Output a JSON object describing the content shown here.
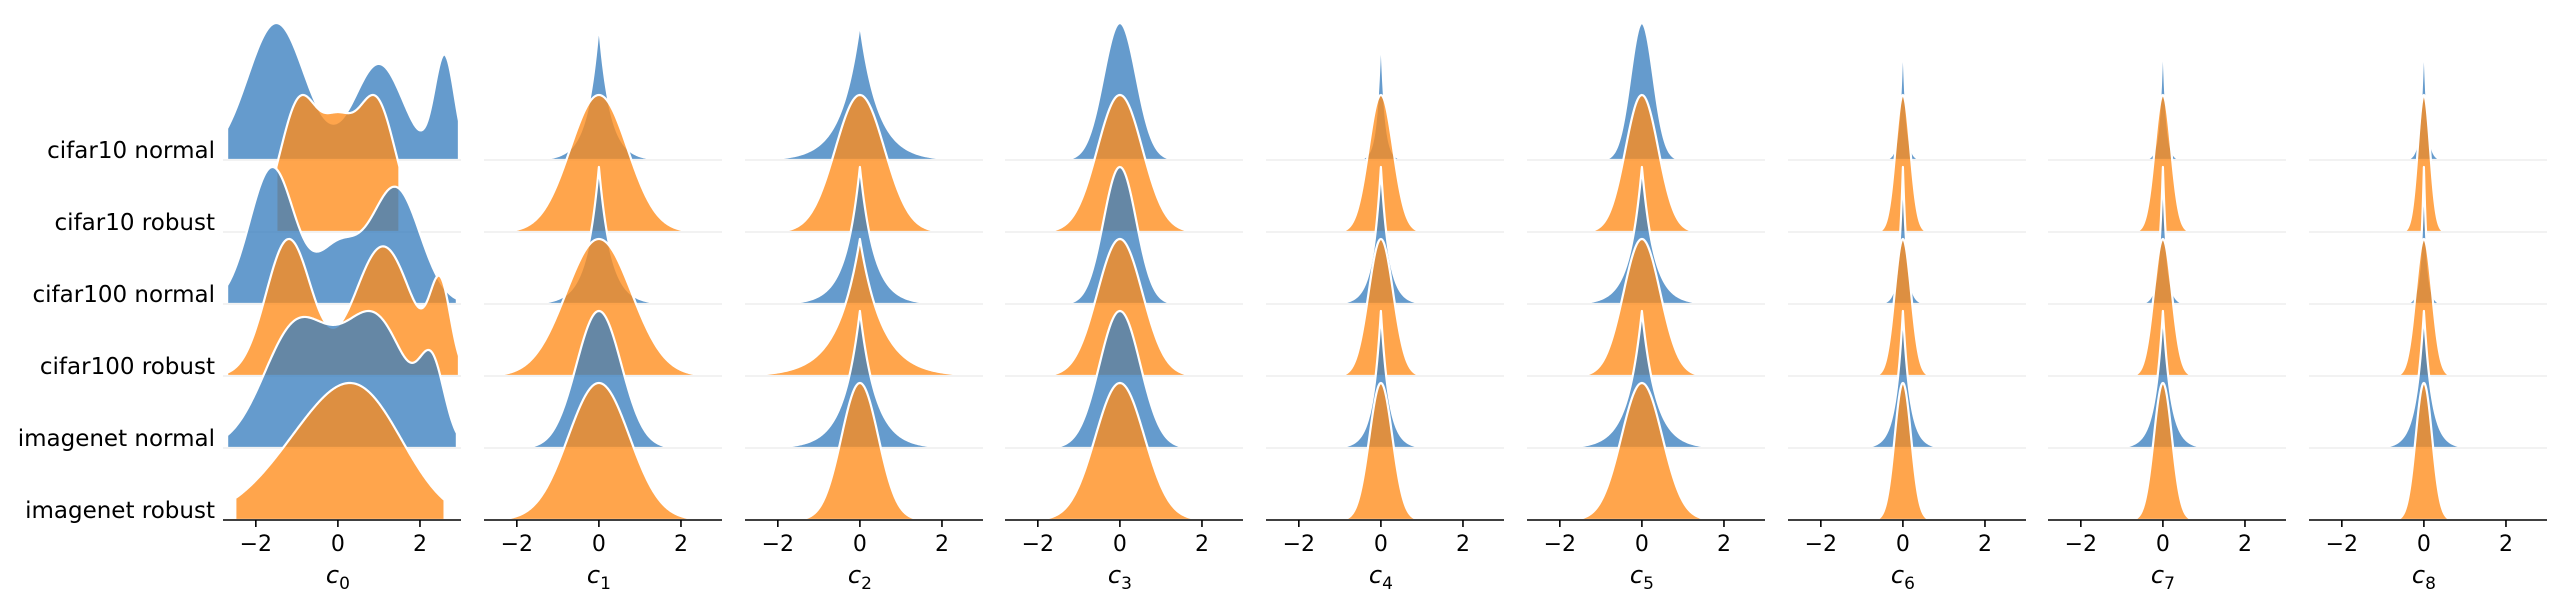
{
  "chart_data": {
    "type": "ridgeline",
    "rows": [
      "cifar10 normal",
      "cifar10 robust",
      "cifar100 normal",
      "cifar100 robust",
      "imagenet normal",
      "imagenet robust"
    ],
    "row_colors": [
      "#3a7fbf",
      "#ff8c1a",
      "#3a7fbf",
      "#ff8c1a",
      "#3a7fbf",
      "#ff8c1a"
    ],
    "colors": {
      "blue": "#3a7fbf",
      "orange": "#ff8c1a",
      "outline": "#ffffff",
      "axis": "#000000"
    },
    "x_ticks": [
      -2,
      0,
      2
    ],
    "x_tick_labels": [
      "−2",
      "0",
      "2"
    ],
    "panels": [
      {
        "label": "c",
        "sub": "0",
        "xlim": [
          -2.8,
          3.0
        ],
        "rows": [
          {
            "kind": "mix",
            "peaks": [
              [
                -1.5,
                0.7,
                1.0
              ],
              [
                1.0,
                0.6,
                0.7
              ],
              [
                2.6,
                0.25,
                0.75
              ]
            ],
            "range": [
              -2.7,
              2.95
            ]
          },
          {
            "kind": "mix",
            "peaks": [
              [
                -0.9,
                0.5,
                1.0
              ],
              [
                0.9,
                0.5,
                1.0
              ],
              [
                0.0,
                0.35,
                0.5
              ]
            ],
            "range": [
              -1.5,
              1.5
            ]
          },
          {
            "kind": "mix",
            "peaks": [
              [
                -1.6,
                0.55,
                1.0
              ],
              [
                1.4,
                0.6,
                0.85
              ],
              [
                0.0,
                0.5,
                0.4
              ]
            ],
            "range": [
              -2.7,
              2.9
            ]
          },
          {
            "kind": "mix",
            "peaks": [
              [
                -1.2,
                0.55,
                1.0
              ],
              [
                1.1,
                0.7,
                0.95
              ],
              [
                2.5,
                0.25,
                0.6
              ]
            ],
            "range": [
              -2.7,
              2.95
            ]
          },
          {
            "kind": "mix",
            "peaks": [
              [
                -1.0,
                0.8,
                0.9
              ],
              [
                0.9,
                0.8,
                0.95
              ],
              [
                2.3,
                0.3,
                0.5
              ]
            ],
            "range": [
              -2.7,
              2.9
            ]
          },
          {
            "kind": "mix",
            "peaks": [
              [
                -0.3,
                1.3,
                1.0
              ],
              [
                0.8,
                1.0,
                0.7
              ]
            ],
            "range": [
              -2.5,
              2.6
            ]
          }
        ]
      },
      {
        "label": "c",
        "sub": "1",
        "xlim": [
          -2.8,
          3.0
        ],
        "rows": [
          {
            "kind": "lap",
            "b": 0.28,
            "range": [
              -2.8,
              2.8
            ]
          },
          {
            "kind": "gauss",
            "s": 0.7,
            "range": [
              -2.8,
              2.8
            ]
          },
          {
            "kind": "lap",
            "b": 0.3,
            "range": [
              -2.8,
              2.8
            ]
          },
          {
            "kind": "gauss",
            "s": 0.8,
            "range": [
              -2.8,
              2.8
            ]
          },
          {
            "kind": "gauss",
            "s": 0.55,
            "range": [
              -2.8,
              2.8
            ]
          },
          {
            "kind": "gauss",
            "s": 0.75,
            "range": [
              -2.8,
              2.8
            ]
          }
        ]
      },
      {
        "label": "c",
        "sub": "2",
        "xlim": [
          -2.8,
          3.0
        ],
        "rows": [
          {
            "kind": "lap",
            "b": 0.45,
            "range": [
              -2.8,
              2.8
            ]
          },
          {
            "kind": "gauss",
            "s": 0.6,
            "range": [
              -2.8,
              2.8
            ]
          },
          {
            "kind": "lap",
            "b": 0.35,
            "range": [
              -2.8,
              2.8
            ]
          },
          {
            "kind": "lap",
            "b": 0.55,
            "range": [
              -2.8,
              2.8
            ]
          },
          {
            "kind": "lap",
            "b": 0.4,
            "range": [
              -2.8,
              2.8
            ]
          },
          {
            "kind": "gauss",
            "s": 0.45,
            "range": [
              -2.8,
              2.8
            ]
          }
        ]
      },
      {
        "label": "c",
        "sub": "3",
        "xlim": [
          -2.8,
          3.0
        ],
        "rows": [
          {
            "kind": "gauss",
            "s": 0.4,
            "range": [
              -2.8,
              2.8
            ]
          },
          {
            "kind": "gauss",
            "s": 0.55,
            "range": [
              -2.8,
              2.8
            ]
          },
          {
            "kind": "gauss",
            "s": 0.4,
            "range": [
              -2.8,
              2.8
            ]
          },
          {
            "kind": "gauss",
            "s": 0.55,
            "range": [
              -2.8,
              2.8
            ]
          },
          {
            "kind": "gauss",
            "s": 0.5,
            "range": [
              -2.8,
              2.8
            ]
          },
          {
            "kind": "gauss",
            "s": 0.6,
            "range": [
              -2.8,
              2.8
            ]
          }
        ]
      },
      {
        "label": "c",
        "sub": "4",
        "xlim": [
          -2.8,
          3.0
        ],
        "rows": [
          {
            "kind": "lap",
            "b": 0.1,
            "range": [
              -2.0,
              2.0
            ]
          },
          {
            "kind": "gauss",
            "s": 0.3,
            "range": [
              -2.0,
              2.0
            ]
          },
          {
            "kind": "lap",
            "b": 0.2,
            "range": [
              -2.0,
              2.0
            ]
          },
          {
            "kind": "gauss",
            "s": 0.3,
            "range": [
              -2.0,
              2.0
            ]
          },
          {
            "kind": "lap",
            "b": 0.2,
            "range": [
              -2.0,
              2.0
            ]
          },
          {
            "kind": "gauss",
            "s": 0.28,
            "range": [
              -2.0,
              2.0
            ]
          }
        ]
      },
      {
        "label": "c",
        "sub": "5",
        "xlim": [
          -2.8,
          3.0
        ],
        "rows": [
          {
            "kind": "gauss",
            "s": 0.28,
            "range": [
              -2.8,
              2.8
            ]
          },
          {
            "kind": "gauss",
            "s": 0.4,
            "range": [
              -2.8,
              2.8
            ]
          },
          {
            "kind": "lap",
            "b": 0.3,
            "range": [
              -2.8,
              2.8
            ]
          },
          {
            "kind": "gauss",
            "s": 0.45,
            "range": [
              -2.8,
              2.8
            ]
          },
          {
            "kind": "lap",
            "b": 0.35,
            "range": [
              -2.8,
              2.8
            ]
          },
          {
            "kind": "gauss",
            "s": 0.5,
            "range": [
              -2.8,
              2.8
            ]
          }
        ]
      },
      {
        "label": "c",
        "sub": "6",
        "xlim": [
          -2.8,
          3.0
        ],
        "rows": [
          {
            "kind": "lap",
            "b": 0.08,
            "range": [
              -1.5,
              1.5
            ]
          },
          {
            "kind": "gauss",
            "s": 0.18,
            "range": [
              -1.5,
              1.5
            ]
          },
          {
            "kind": "lap",
            "b": 0.1,
            "range": [
              -1.5,
              1.5
            ]
          },
          {
            "kind": "gauss",
            "s": 0.2,
            "range": [
              -1.5,
              1.5
            ]
          },
          {
            "kind": "lap",
            "b": 0.18,
            "range": [
              -1.5,
              1.5
            ]
          },
          {
            "kind": "gauss",
            "s": 0.2,
            "range": [
              -1.5,
              1.5
            ]
          }
        ]
      },
      {
        "label": "c",
        "sub": "7",
        "xlim": [
          -2.8,
          3.0
        ],
        "rows": [
          {
            "kind": "lap",
            "b": 0.08,
            "range": [
              -1.8,
              1.8
            ]
          },
          {
            "kind": "gauss",
            "s": 0.2,
            "range": [
              -1.8,
              1.8
            ]
          },
          {
            "kind": "lap",
            "b": 0.1,
            "range": [
              -1.8,
              1.8
            ]
          },
          {
            "kind": "gauss",
            "s": 0.22,
            "range": [
              -1.8,
              1.8
            ]
          },
          {
            "kind": "lap",
            "b": 0.2,
            "range": [
              -1.8,
              1.8
            ]
          },
          {
            "kind": "gauss",
            "s": 0.22,
            "range": [
              -1.8,
              1.8
            ]
          }
        ]
      },
      {
        "label": "c",
        "sub": "8",
        "xlim": [
          -2.8,
          3.0
        ],
        "rows": [
          {
            "kind": "lap",
            "b": 0.08,
            "range": [
              -1.5,
              1.5
            ]
          },
          {
            "kind": "gauss",
            "s": 0.15,
            "range": [
              -1.5,
              1.5
            ]
          },
          {
            "kind": "lap",
            "b": 0.08,
            "range": [
              -1.5,
              1.5
            ]
          },
          {
            "kind": "gauss",
            "s": 0.2,
            "range": [
              -1.5,
              1.5
            ]
          },
          {
            "kind": "lap",
            "b": 0.2,
            "range": [
              -1.5,
              1.5
            ]
          },
          {
            "kind": "gauss",
            "s": 0.2,
            "range": [
              -1.5,
              1.5
            ]
          }
        ]
      }
    ]
  }
}
